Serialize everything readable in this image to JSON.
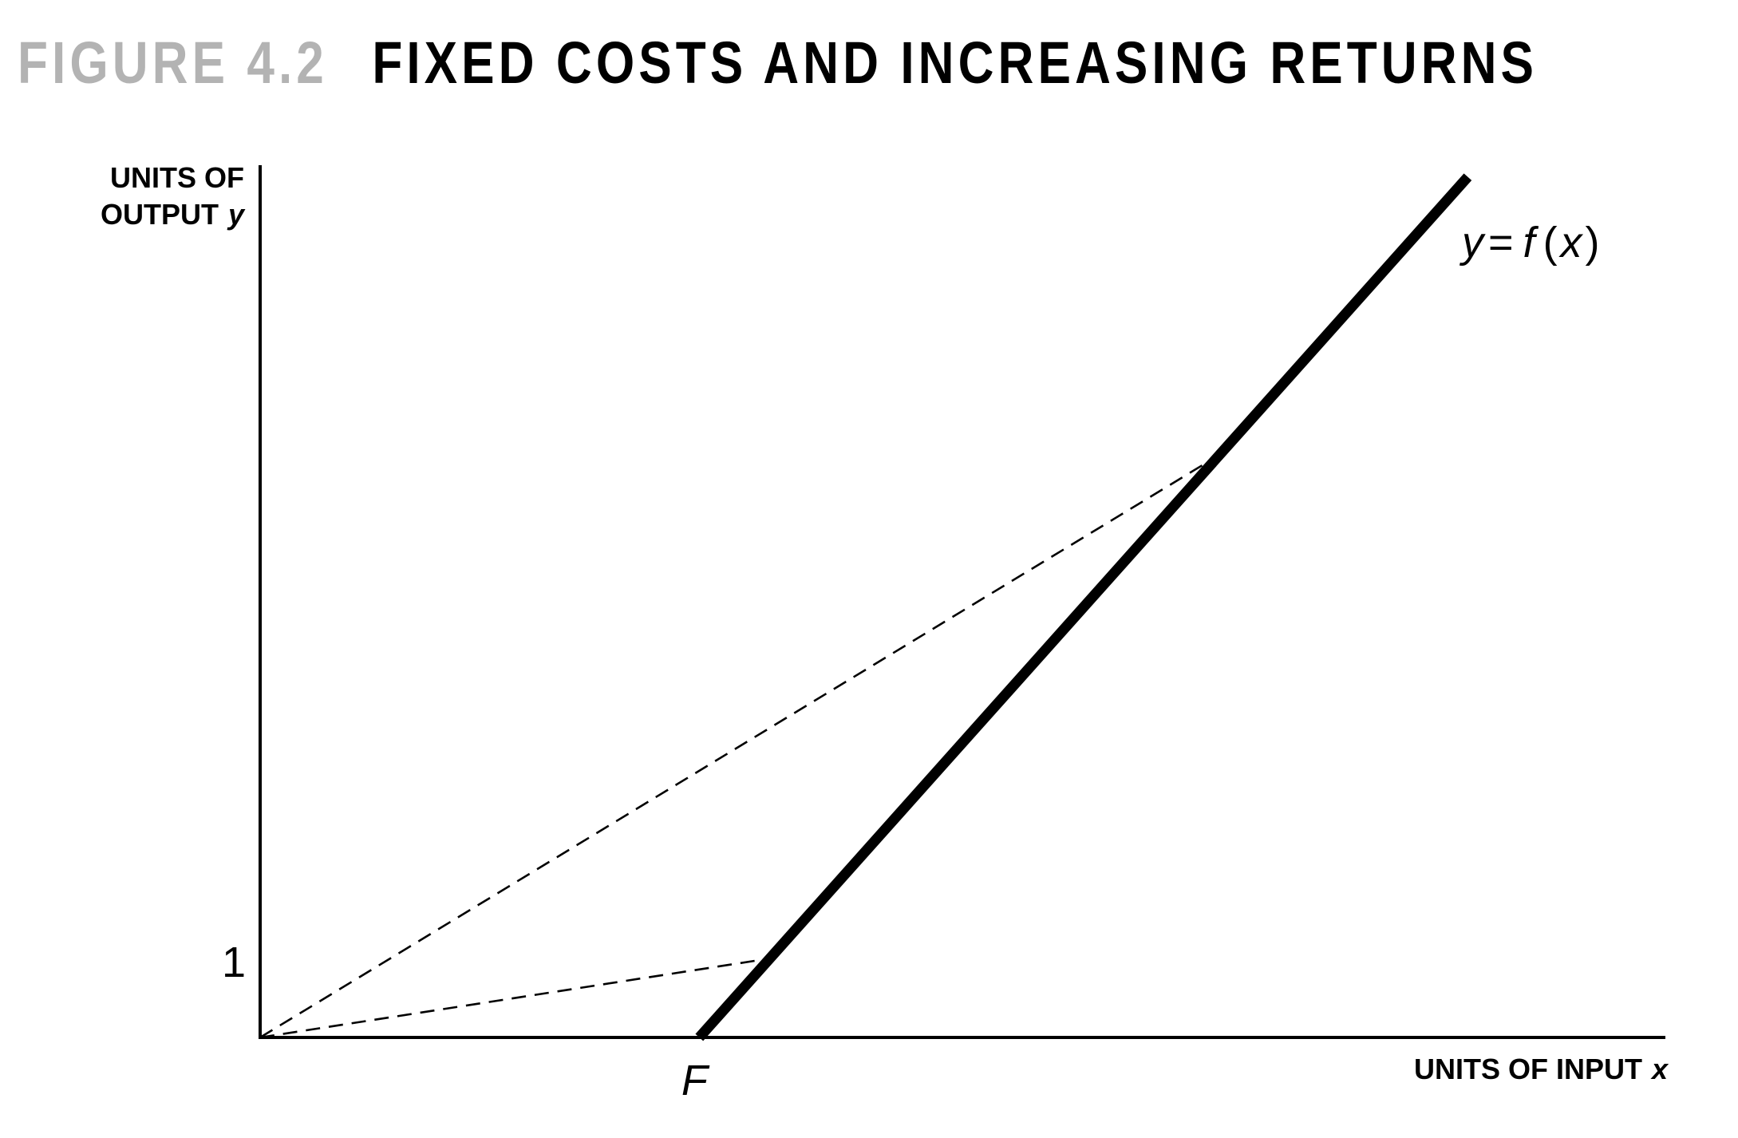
{
  "figure": {
    "number": "FIGURE 4.2",
    "caption": "FIXED COSTS AND INCREASING RETURNS"
  },
  "chart_data": {
    "type": "line",
    "title": "FIXED COSTS AND INCREASING RETURNS",
    "xlabel": "UNITS OF INPUT",
    "xlabel_var": "x",
    "ylabel_line1": "UNITS OF",
    "ylabel_line2": "OUTPUT",
    "ylabel_var": "y",
    "x_ticks": [
      {
        "value": 1,
        "label": "F"
      }
    ],
    "y_ticks": [
      {
        "value": 1,
        "label": "1"
      }
    ],
    "xlim": [
      0,
      3.2
    ],
    "ylim": [
      0,
      11.15
    ],
    "grid": false,
    "legend": "none",
    "series": [
      {
        "label": "y = f (x)",
        "style": "solid",
        "color": "#000000",
        "points": [
          [
            1,
            0
          ],
          [
            2.75,
            11.0
          ]
        ]
      }
    ],
    "reference_lines": [
      {
        "style": "dashed",
        "points": [
          [
            0,
            0
          ],
          [
            1.15,
            1.0
          ]
        ]
      },
      {
        "style": "dashed",
        "points": [
          [
            0,
            0
          ],
          [
            2.2,
            7.5
          ]
        ]
      }
    ],
    "curve_label": {
      "y": "y",
      "eq": "=",
      "f": "f",
      "open": "(",
      "x": "x",
      "close": ")"
    }
  }
}
